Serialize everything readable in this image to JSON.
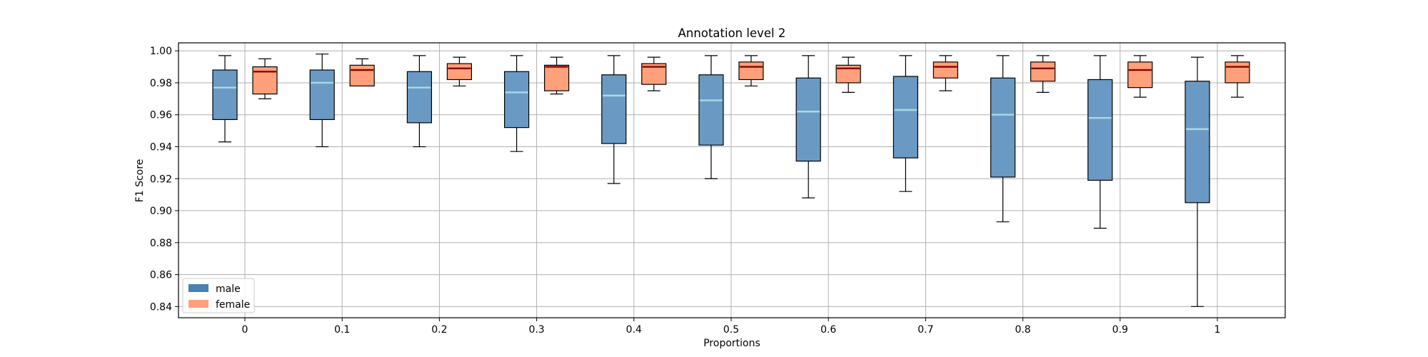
{
  "chart_data": {
    "type": "box",
    "title": "Annotation level 2",
    "xlabel": "Proportions",
    "ylabel": "F1 Score",
    "categories": [
      "0",
      "0.1",
      "0.2",
      "0.3",
      "0.4",
      "0.5",
      "0.6",
      "0.7",
      "0.8",
      "0.9",
      "1"
    ],
    "ylim": [
      0.833,
      1.005
    ],
    "yticks": [
      0.84,
      0.86,
      0.88,
      0.9,
      0.92,
      0.94,
      0.96,
      0.98,
      1.0
    ],
    "ytick_labels": [
      "0.84",
      "0.86",
      "0.88",
      "0.90",
      "0.92",
      "0.94",
      "0.96",
      "0.98",
      "1.00"
    ],
    "grid": true,
    "legend_position": "lower-left",
    "colors": {
      "male_fill": "#6a9ac4",
      "male_median": "#add8e6",
      "female_fill": "#ffa07a",
      "female_median": "#8b0000",
      "whisker": "#000000",
      "grid": "#b0b0b0"
    },
    "series": [
      {
        "name": "male",
        "legend_color": "#4682b4",
        "boxes": [
          {
            "whislo": 0.943,
            "q1": 0.957,
            "med": 0.977,
            "q3": 0.988,
            "whishi": 0.997
          },
          {
            "whislo": 0.94,
            "q1": 0.957,
            "med": 0.98,
            "q3": 0.988,
            "whishi": 0.998
          },
          {
            "whislo": 0.94,
            "q1": 0.955,
            "med": 0.977,
            "q3": 0.987,
            "whishi": 0.997
          },
          {
            "whislo": 0.937,
            "q1": 0.952,
            "med": 0.974,
            "q3": 0.987,
            "whishi": 0.997
          },
          {
            "whislo": 0.917,
            "q1": 0.942,
            "med": 0.972,
            "q3": 0.985,
            "whishi": 0.997
          },
          {
            "whislo": 0.92,
            "q1": 0.941,
            "med": 0.969,
            "q3": 0.985,
            "whishi": 0.997
          },
          {
            "whislo": 0.908,
            "q1": 0.931,
            "med": 0.962,
            "q3": 0.983,
            "whishi": 0.997
          },
          {
            "whislo": 0.912,
            "q1": 0.933,
            "med": 0.963,
            "q3": 0.984,
            "whishi": 0.997
          },
          {
            "whislo": 0.893,
            "q1": 0.921,
            "med": 0.96,
            "q3": 0.983,
            "whishi": 0.997
          },
          {
            "whislo": 0.889,
            "q1": 0.919,
            "med": 0.958,
            "q3": 0.982,
            "whishi": 0.997
          },
          {
            "whislo": 0.84,
            "q1": 0.905,
            "med": 0.951,
            "q3": 0.981,
            "whishi": 0.996
          }
        ]
      },
      {
        "name": "female",
        "legend_color": "#ffa07a",
        "boxes": [
          {
            "whislo": 0.97,
            "q1": 0.973,
            "med": 0.987,
            "q3": 0.99,
            "whishi": 0.995
          },
          {
            "whislo": 0.978,
            "q1": 0.978,
            "med": 0.988,
            "q3": 0.991,
            "whishi": 0.995
          },
          {
            "whislo": 0.978,
            "q1": 0.982,
            "med": 0.989,
            "q3": 0.992,
            "whishi": 0.996
          },
          {
            "whislo": 0.973,
            "q1": 0.975,
            "med": 0.99,
            "q3": 0.991,
            "whishi": 0.996
          },
          {
            "whislo": 0.975,
            "q1": 0.979,
            "med": 0.99,
            "q3": 0.992,
            "whishi": 0.996
          },
          {
            "whislo": 0.978,
            "q1": 0.982,
            "med": 0.99,
            "q3": 0.993,
            "whishi": 0.997
          },
          {
            "whislo": 0.974,
            "q1": 0.98,
            "med": 0.989,
            "q3": 0.991,
            "whishi": 0.996
          },
          {
            "whislo": 0.975,
            "q1": 0.983,
            "med": 0.99,
            "q3": 0.993,
            "whishi": 0.997
          },
          {
            "whislo": 0.974,
            "q1": 0.981,
            "med": 0.989,
            "q3": 0.993,
            "whishi": 0.997
          },
          {
            "whislo": 0.971,
            "q1": 0.977,
            "med": 0.988,
            "q3": 0.993,
            "whishi": 0.997
          },
          {
            "whislo": 0.971,
            "q1": 0.98,
            "med": 0.99,
            "q3": 0.993,
            "whishi": 0.997
          }
        ]
      }
    ]
  }
}
